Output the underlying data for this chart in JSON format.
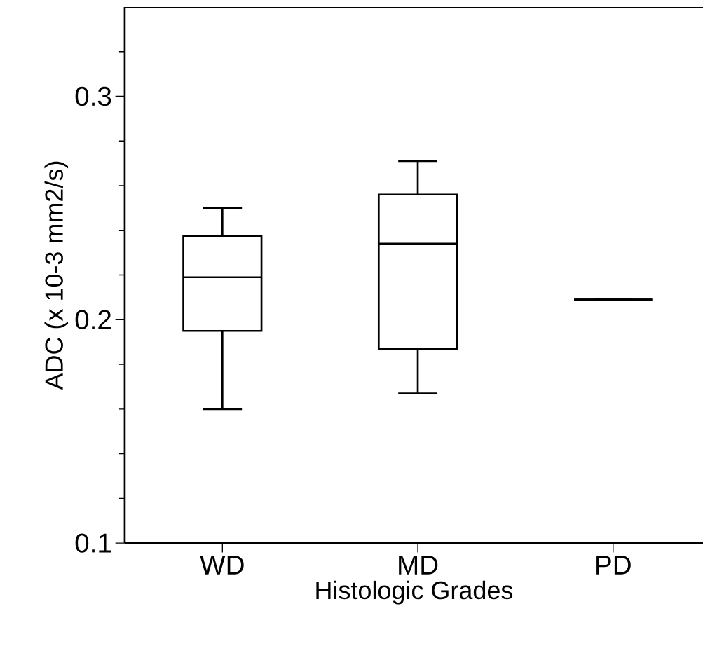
{
  "chart_data": {
    "type": "box",
    "xlabel": "Histologic Grades",
    "ylabel": "ADC (x 10-3 mm2/s)",
    "categories": [
      "WD",
      "MD",
      "PD"
    ],
    "color": "#000000",
    "boxes": [
      {
        "low": 0.16,
        "q1": 0.195,
        "median": 0.219,
        "q3": 0.2375,
        "high": 0.25
      },
      {
        "low": 0.167,
        "q1": 0.187,
        "median": 0.234,
        "q3": 0.256,
        "high": 0.271
      },
      {
        "low": 0.209,
        "q1": 0.209,
        "median": 0.209,
        "q3": 0.209,
        "high": 0.209
      }
    ],
    "ylim": [
      0.1,
      0.34
    ],
    "yticks": [
      0.1,
      {
        "value": 0.12,
        "label": null
      },
      {
        "value": 0.14,
        "label": null
      },
      {
        "value": 0.16,
        "label": null
      },
      {
        "value": 0.18,
        "label": null
      },
      0.2,
      {
        "value": 0.22,
        "label": null
      },
      {
        "value": 0.24,
        "label": null
      },
      {
        "value": 0.26,
        "label": null
      },
      {
        "value": 0.28,
        "label": null
      },
      0.3,
      {
        "value": 0.32,
        "label": null
      }
    ],
    "grid": false
  }
}
